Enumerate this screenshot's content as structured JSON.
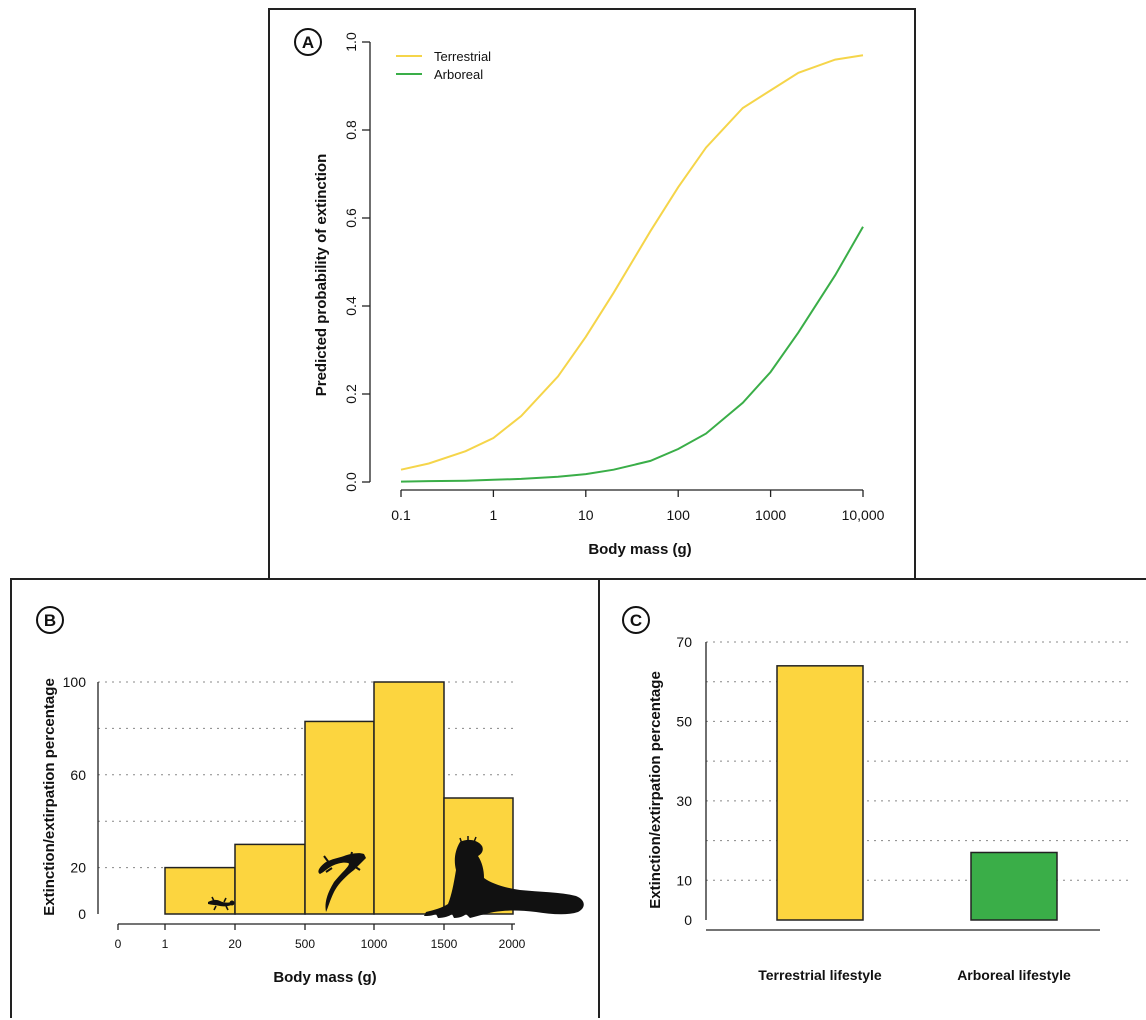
{
  "colors": {
    "terrestrial": "#f5d54a",
    "arboreal": "#3aae48",
    "bar_yellow": "#fcd53f",
    "bar_green": "#3aae48",
    "outline": "#222222"
  },
  "chart_data": [
    {
      "panel": "A",
      "type": "line",
      "xscale": "log",
      "xlabel": "Body mass (g)",
      "ylabel": "Predicted probability of extinction",
      "xlim": [
        0.1,
        10000
      ],
      "ylim": [
        0,
        1
      ],
      "xticks": [
        0.1,
        1,
        10,
        100,
        1000,
        10000
      ],
      "xtick_labels": [
        "0.1",
        "1",
        "10",
        "100",
        "1000",
        "10,000"
      ],
      "yticks": [
        0,
        0.2,
        0.4,
        0.6,
        0.8,
        1
      ],
      "ytick_labels": [
        "0.0",
        "0.2",
        "0.4",
        "0.6",
        "0.8",
        "1.0"
      ],
      "legend_position": "top-left",
      "series": [
        {
          "name": "Terrestrial",
          "color": "#f5d54a",
          "x": [
            0.1,
            0.2,
            0.5,
            1,
            2,
            5,
            10,
            20,
            50,
            100,
            200,
            500,
            1000,
            2000,
            5000,
            10000
          ],
          "y": [
            0.028,
            0.042,
            0.07,
            0.1,
            0.15,
            0.24,
            0.33,
            0.43,
            0.57,
            0.67,
            0.76,
            0.85,
            0.89,
            0.93,
            0.96,
            0.97
          ]
        },
        {
          "name": "Arboreal",
          "color": "#3aae48",
          "x": [
            0.1,
            0.2,
            0.5,
            1,
            2,
            5,
            10,
            20,
            50,
            100,
            200,
            500,
            1000,
            2000,
            5000,
            10000
          ],
          "y": [
            0.001,
            0.002,
            0.003,
            0.005,
            0.007,
            0.012,
            0.018,
            0.028,
            0.048,
            0.075,
            0.11,
            0.18,
            0.25,
            0.34,
            0.47,
            0.58
          ]
        }
      ]
    },
    {
      "panel": "B",
      "type": "bar",
      "xlabel": "Body mass (g)",
      "ylabel": "Extinction/extirpation percentage",
      "ylim": [
        0,
        100
      ],
      "ytick_labels": [
        "0",
        "20",
        "60",
        "100"
      ],
      "yticks": [
        0,
        20,
        60,
        100
      ],
      "ygrid": [
        20,
        40,
        60,
        80,
        100
      ],
      "xtick_labels": [
        "0",
        "1",
        "20",
        "500",
        "1000",
        "1500",
        "2000"
      ],
      "categories": [
        "1–20",
        "20–500",
        "500–1000",
        "1000–1500",
        "1500–2000"
      ],
      "values": [
        20,
        30,
        83,
        100,
        50
      ]
    },
    {
      "panel": "C",
      "type": "bar",
      "ylabel": "Extinction/extirpation percentage",
      "ylim": [
        0,
        70
      ],
      "yticks": [
        0,
        10,
        30,
        50,
        70
      ],
      "ytick_labels": [
        "0",
        "10",
        "30",
        "50",
        "70"
      ],
      "ygrid": [
        10,
        20,
        30,
        40,
        50,
        60,
        70
      ],
      "categories": [
        "Terrestrial lifestyle",
        "Arboreal lifestyle"
      ],
      "values": [
        64,
        17
      ]
    }
  ]
}
